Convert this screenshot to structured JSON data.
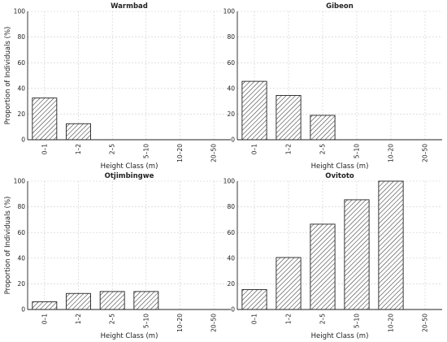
{
  "chart_data": [
    {
      "type": "bar",
      "title": "Warmbad",
      "xlabel": "Height Class (m)",
      "ylabel": "Proportion of Individuals (%)",
      "ylim": [
        0,
        100
      ],
      "yticks": [
        0,
        20,
        40,
        60,
        80,
        100
      ],
      "grid": true,
      "hatch": "diagonal",
      "categories": [
        "0–1",
        "1–2",
        "2–5",
        "5–10",
        "10–20",
        "20–50"
      ],
      "values": [
        32.5,
        12.5,
        0,
        0,
        0,
        0
      ]
    },
    {
      "type": "bar",
      "title": "Gibeon",
      "xlabel": "Height Class (m)",
      "ylabel": "",
      "ylim": [
        0,
        100
      ],
      "yticks": [
        0,
        20,
        40,
        60,
        80,
        100
      ],
      "grid": true,
      "hatch": "diagonal",
      "categories": [
        "0–1",
        "1–2",
        "2–5",
        "5–10",
        "10–20",
        "20–50"
      ],
      "values": [
        45.5,
        34.5,
        19,
        0,
        0,
        0
      ]
    },
    {
      "type": "bar",
      "title": "Otjimbingwe",
      "xlabel": "Height Class (m)",
      "ylabel": "Proportion of Individuals (%)",
      "ylim": [
        0,
        100
      ],
      "yticks": [
        0,
        20,
        40,
        60,
        80,
        100
      ],
      "grid": true,
      "hatch": "diagonal",
      "categories": [
        "0–1",
        "1–2",
        "2–5",
        "5–10",
        "10–20",
        "20–50"
      ],
      "values": [
        6,
        12.5,
        14,
        14,
        0,
        0
      ]
    },
    {
      "type": "bar",
      "title": "Ovitoto",
      "xlabel": "Height Class (m)",
      "ylabel": "",
      "ylim": [
        0,
        100
      ],
      "yticks": [
        0,
        20,
        40,
        60,
        80,
        100
      ],
      "grid": true,
      "hatch": "diagonal",
      "categories": [
        "0–1",
        "1–2",
        "2–5",
        "5–10",
        "10–20",
        "20–50"
      ],
      "values": [
        15.5,
        40.5,
        66.5,
        85.5,
        100,
        0
      ]
    }
  ]
}
